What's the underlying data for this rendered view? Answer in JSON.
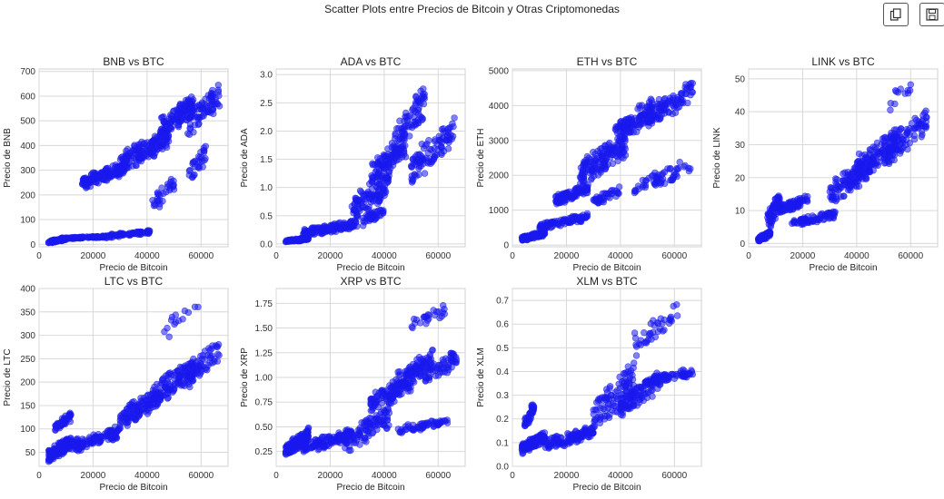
{
  "figure": {
    "suptitle": "Scatter Plots entre Precios de Bitcoin y Otras Criptomonedas",
    "marker_color": "#1a1aee",
    "marker_opacity": 0.55,
    "grid_color": "#d8d8d8",
    "toolbar": {
      "copy_icon": "copy-icon",
      "save_icon": "floppy-disk-icon"
    }
  },
  "chart_data": [
    {
      "type": "scatter",
      "title": "BNB vs BTC",
      "xlabel": "Precio de Bitcoin",
      "ylabel": "Precio de BNB",
      "xlim": [
        0,
        70000
      ],
      "ylim": [
        -10,
        710
      ],
      "xticks": [
        0,
        20000,
        40000,
        60000
      ],
      "yticks": [
        0,
        100,
        200,
        300,
        400,
        500,
        600,
        700
      ],
      "clusters": [
        {
          "x": [
            3500,
            10000
          ],
          "y": [
            2,
            30
          ],
          "n": 90
        },
        {
          "x": [
            8000,
            25000
          ],
          "y": [
            20,
            35
          ],
          "n": 110
        },
        {
          "x": [
            25000,
            42000
          ],
          "y": [
            25,
            60
          ],
          "n": 70
        },
        {
          "x": [
            16000,
            32000
          ],
          "y": [
            220,
            340
          ],
          "n": 160
        },
        {
          "x": [
            30000,
            48000
          ],
          "y": [
            280,
            480
          ],
          "n": 150
        },
        {
          "x": [
            45000,
            58000
          ],
          "y": [
            420,
            620
          ],
          "n": 120
        },
        {
          "x": [
            55000,
            67000
          ],
          "y": [
            430,
            660
          ],
          "n": 80
        },
        {
          "x": [
            42000,
            50000
          ],
          "y": [
            110,
            290
          ],
          "n": 30
        },
        {
          "x": [
            55000,
            62000
          ],
          "y": [
            220,
            420
          ],
          "n": 30
        }
      ]
    },
    {
      "type": "scatter",
      "title": "ADA vs BTC",
      "xlabel": "Precio de Bitcoin",
      "ylabel": "Precio de ADA",
      "xlim": [
        0,
        70000
      ],
      "ylim": [
        -0.05,
        3.1
      ],
      "xticks": [
        0,
        20000,
        40000,
        60000
      ],
      "yticks": [
        0.0,
        0.5,
        1.0,
        1.5,
        2.0,
        2.5,
        3.0
      ],
      "clusters": [
        {
          "x": [
            3500,
            12000
          ],
          "y": [
            0.02,
            0.12
          ],
          "n": 120
        },
        {
          "x": [
            10000,
            30000
          ],
          "y": [
            0.1,
            0.45
          ],
          "n": 130
        },
        {
          "x": [
            28000,
            42000
          ],
          "y": [
            0.3,
            1.4
          ],
          "n": 110
        },
        {
          "x": [
            35000,
            48000
          ],
          "y": [
            1.0,
            2.0
          ],
          "n": 100
        },
        {
          "x": [
            44000,
            55000
          ],
          "y": [
            1.5,
            2.9
          ],
          "n": 80
        },
        {
          "x": [
            50000,
            66000
          ],
          "y": [
            1.0,
            2.3
          ],
          "n": 100
        },
        {
          "x": [
            32000,
            40000
          ],
          "y": [
            0.3,
            0.7
          ],
          "n": 40
        }
      ]
    },
    {
      "type": "scatter",
      "title": "ETH vs BTC",
      "xlabel": "Precio de Bitcoin",
      "ylabel": "Precio de ETH",
      "xlim": [
        0,
        70000
      ],
      "ylim": [
        -50,
        5050
      ],
      "xticks": [
        0,
        20000,
        40000,
        60000
      ],
      "yticks": [
        0,
        1000,
        2000,
        3000,
        4000,
        5000
      ],
      "clusters": [
        {
          "x": [
            3500,
            12000
          ],
          "y": [
            90,
            420
          ],
          "n": 120
        },
        {
          "x": [
            10000,
            28000
          ],
          "y": [
            400,
            950
          ],
          "n": 100
        },
        {
          "x": [
            16000,
            28000
          ],
          "y": [
            1100,
            1800
          ],
          "n": 110
        },
        {
          "x": [
            25000,
            42000
          ],
          "y": [
            1600,
            3300
          ],
          "n": 150
        },
        {
          "x": [
            38000,
            52000
          ],
          "y": [
            2800,
            4300
          ],
          "n": 120
        },
        {
          "x": [
            50000,
            67000
          ],
          "y": [
            3300,
            4800
          ],
          "n": 100
        },
        {
          "x": [
            30000,
            40000
          ],
          "y": [
            1100,
            1700
          ],
          "n": 40
        },
        {
          "x": [
            45000,
            66000
          ],
          "y": [
            1400,
            2500
          ],
          "n": 60
        }
      ]
    },
    {
      "type": "scatter",
      "title": "LINK vs BTC",
      "xlabel": "Precio de Bitcoin",
      "ylabel": "Precio de LINK",
      "xlim": [
        0,
        70000
      ],
      "ylim": [
        -1,
        53
      ],
      "xticks": [
        0,
        20000,
        40000,
        60000
      ],
      "yticks": [
        0,
        10,
        20,
        30,
        40,
        50
      ],
      "clusters": [
        {
          "x": [
            3500,
            8000
          ],
          "y": [
            0.2,
            4
          ],
          "n": 80
        },
        {
          "x": [
            7000,
            12000
          ],
          "y": [
            2,
            18
          ],
          "n": 60
        },
        {
          "x": [
            10000,
            22000
          ],
          "y": [
            8,
            15
          ],
          "n": 80
        },
        {
          "x": [
            16000,
            32000
          ],
          "y": [
            5,
            10
          ],
          "n": 80
        },
        {
          "x": [
            30000,
            45000
          ],
          "y": [
            10,
            28
          ],
          "n": 110
        },
        {
          "x": [
            40000,
            55000
          ],
          "y": [
            18,
            36
          ],
          "n": 110
        },
        {
          "x": [
            50000,
            66000
          ],
          "y": [
            22,
            42
          ],
          "n": 100
        },
        {
          "x": [
            52000,
            60000
          ],
          "y": [
            38,
            52
          ],
          "n": 12
        }
      ]
    },
    {
      "type": "scatter",
      "title": "LTC vs BTC",
      "xlabel": "Precio de Bitcoin",
      "ylabel": "Precio de LTC",
      "xlim": [
        0,
        70000
      ],
      "ylim": [
        20,
        400
      ],
      "xticks": [
        0,
        20000,
        40000,
        60000
      ],
      "yticks": [
        50,
        100,
        150,
        200,
        250,
        300,
        350,
        400
      ],
      "clusters": [
        {
          "x": [
            3500,
            12000
          ],
          "y": [
            25,
            90
          ],
          "n": 140
        },
        {
          "x": [
            6000,
            12000
          ],
          "y": [
            90,
            140
          ],
          "n": 50
        },
        {
          "x": [
            12000,
            30000
          ],
          "y": [
            45,
            110
          ],
          "n": 120
        },
        {
          "x": [
            30000,
            45000
          ],
          "y": [
            90,
            200
          ],
          "n": 110
        },
        {
          "x": [
            42000,
            58000
          ],
          "y": [
            140,
            260
          ],
          "n": 110
        },
        {
          "x": [
            52000,
            67000
          ],
          "y": [
            170,
            300
          ],
          "n": 80
        },
        {
          "x": [
            46000,
            60000
          ],
          "y": [
            280,
            385
          ],
          "n": 14
        }
      ]
    },
    {
      "type": "scatter",
      "title": "XRP vs BTC",
      "xlabel": "Precio de Bitcoin",
      "ylabel": "Precio de XRP",
      "xlim": [
        0,
        70000
      ],
      "ylim": [
        0.1,
        1.9
      ],
      "xticks": [
        0,
        20000,
        40000,
        60000
      ],
      "yticks": [
        0.25,
        0.5,
        0.75,
        1.0,
        1.25,
        1.5,
        1.75
      ],
      "clusters": [
        {
          "x": [
            3500,
            12000
          ],
          "y": [
            0.18,
            0.5
          ],
          "n": 150
        },
        {
          "x": [
            10000,
            28000
          ],
          "y": [
            0.22,
            0.5
          ],
          "n": 120
        },
        {
          "x": [
            25000,
            42000
          ],
          "y": [
            0.2,
            0.75
          ],
          "n": 110
        },
        {
          "x": [
            35000,
            50000
          ],
          "y": [
            0.6,
            1.1
          ],
          "n": 110
        },
        {
          "x": [
            44000,
            58000
          ],
          "y": [
            0.8,
            1.3
          ],
          "n": 100
        },
        {
          "x": [
            55000,
            67000
          ],
          "y": [
            0.9,
            1.3
          ],
          "n": 60
        },
        {
          "x": [
            45000,
            64000
          ],
          "y": [
            0.42,
            0.6
          ],
          "n": 60
        },
        {
          "x": [
            50000,
            64000
          ],
          "y": [
            1.4,
            1.8
          ],
          "n": 25
        }
      ]
    },
    {
      "type": "scatter",
      "title": "XLM vs BTC",
      "xlabel": "Precio de Bitcoin",
      "ylabel": "Precio de XLM",
      "xlim": [
        0,
        70000
      ],
      "ylim": [
        0.0,
        0.75
      ],
      "xticks": [
        0,
        20000,
        40000,
        60000
      ],
      "yticks": [
        0.0,
        0.1,
        0.2,
        0.3,
        0.4,
        0.5,
        0.6,
        0.7
      ],
      "clusters": [
        {
          "x": [
            3500,
            12000
          ],
          "y": [
            0.05,
            0.15
          ],
          "n": 120
        },
        {
          "x": [
            4500,
            8000
          ],
          "y": [
            0.15,
            0.28
          ],
          "n": 40
        },
        {
          "x": [
            12000,
            30000
          ],
          "y": [
            0.06,
            0.18
          ],
          "n": 120
        },
        {
          "x": [
            30000,
            45000
          ],
          "y": [
            0.12,
            0.45
          ],
          "n": 100
        },
        {
          "x": [
            40000,
            55000
          ],
          "y": [
            0.2,
            0.42
          ],
          "n": 100
        },
        {
          "x": [
            48000,
            67000
          ],
          "y": [
            0.33,
            0.42
          ],
          "n": 80
        },
        {
          "x": [
            45000,
            62000
          ],
          "y": [
            0.45,
            0.72
          ],
          "n": 40
        }
      ]
    }
  ]
}
